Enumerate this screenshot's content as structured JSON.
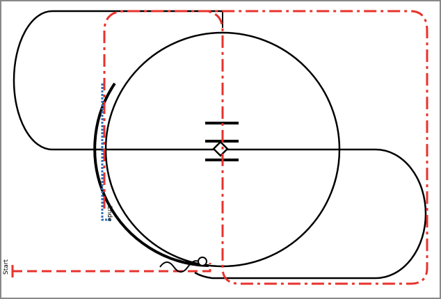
{
  "labels": {
    "start": "Start",
    "end": "Ende"
  }
}
